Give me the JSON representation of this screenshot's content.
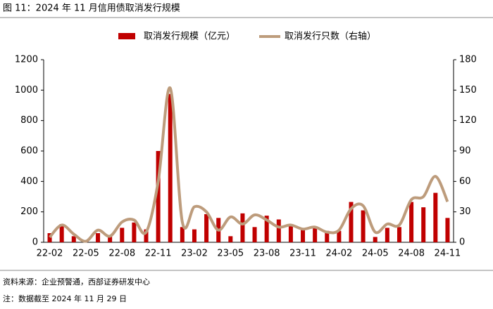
{
  "chart_data": {
    "type": "bar-line",
    "title": "图 11：2024 年 11 月信用债取消发行规模",
    "source": "资料来源：企业预警通，西部证券研发中心",
    "note": "注：数据截至 2024 年 11 月 29 日",
    "categories": [
      "22-02",
      null,
      null,
      "22-05",
      null,
      null,
      "22-08",
      null,
      null,
      "22-11",
      null,
      null,
      "23-02",
      null,
      null,
      "23-05",
      null,
      null,
      "23-08",
      null,
      null,
      "23-11",
      null,
      null,
      "24-02",
      null,
      null,
      "24-05",
      null,
      null,
      "24-08",
      null,
      null,
      "24-11"
    ],
    "series": [
      {
        "name": "取消发行规模（亿元）",
        "type": "bar",
        "color": "#c00000",
        "values": [
          60,
          120,
          40,
          5,
          60,
          40,
          95,
          130,
          85,
          600,
          975,
          100,
          85,
          185,
          160,
          40,
          190,
          100,
          175,
          150,
          120,
          80,
          95,
          75,
          75,
          265,
          210,
          35,
          95,
          100,
          265,
          230,
          325,
          160
        ]
      },
      {
        "name": "取消发行只数（右轴）",
        "type": "line",
        "axis": "y2",
        "color": "#bd9c7c",
        "values": [
          5,
          17,
          8,
          1,
          12,
          6,
          20,
          22,
          10,
          60,
          152,
          20,
          35,
          30,
          12,
          25,
          18,
          27,
          22,
          15,
          17,
          13,
          15,
          10,
          12,
          33,
          36,
          10,
          18,
          17,
          42,
          45,
          65,
          40
        ]
      }
    ],
    "ylim": [
      0,
      1200
    ],
    "yticks": [
      0,
      200,
      400,
      600,
      800,
      1000,
      1200
    ],
    "y2lim": [
      0,
      180
    ],
    "y2ticks": [
      0,
      30,
      60,
      90,
      120,
      150,
      180
    ]
  }
}
